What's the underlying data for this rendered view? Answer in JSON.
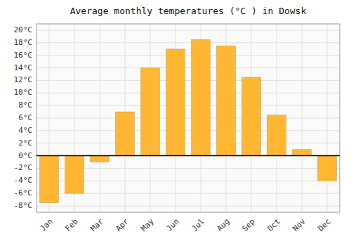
{
  "chart_data": {
    "type": "bar",
    "title": "Average monthly temperatures (°C ) in Dowsk",
    "categories": [
      "Jan",
      "Feb",
      "Mar",
      "Apr",
      "May",
      "Jun",
      "Jul",
      "Aug",
      "Sep",
      "Oct",
      "Nov",
      "Dec"
    ],
    "values": [
      -7.5,
      -6.0,
      -1.0,
      7.0,
      14.0,
      17.0,
      18.5,
      17.5,
      12.5,
      6.5,
      1.0,
      -4.0
    ],
    "color": "#FFB733",
    "ylim": [
      -9,
      21
    ],
    "yticks": [
      {
        "value": -8,
        "label": "-8°C"
      },
      {
        "value": -6,
        "label": "-6°C"
      },
      {
        "value": -4,
        "label": "-4°C"
      },
      {
        "value": -2,
        "label": "-2°C"
      },
      {
        "value": 0,
        "label": "0°C"
      },
      {
        "value": 2,
        "label": "2°C"
      },
      {
        "value": 4,
        "label": "4°C"
      },
      {
        "value": 6,
        "label": "6°C"
      },
      {
        "value": 8,
        "label": "8°C"
      },
      {
        "value": 10,
        "label": "10°C"
      },
      {
        "value": 12,
        "label": "12°C"
      },
      {
        "value": 14,
        "label": "14°C"
      },
      {
        "value": 16,
        "label": "16°C"
      },
      {
        "value": 18,
        "label": "18°C"
      },
      {
        "value": 20,
        "label": "20°C"
      }
    ],
    "grid": true
  }
}
